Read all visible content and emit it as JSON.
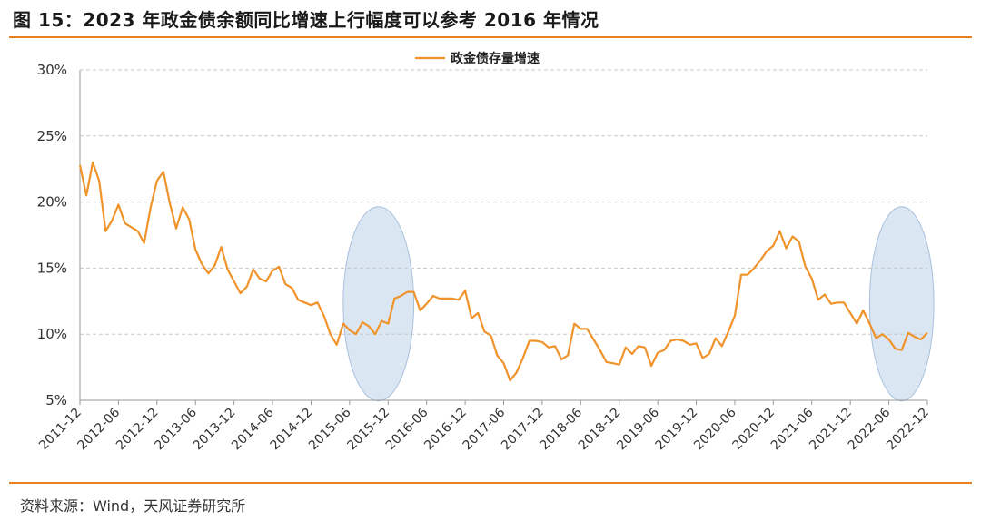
{
  "figure_title": "图 15：2023 年政金债余额同比增速上行幅度可以参考 2016 年情况",
  "source_note": "资料来源：Wind，天风证券研究所",
  "colors": {
    "line": "#f0932b",
    "rule": "#e8821e",
    "ellipse_fill": "#dbe6f3",
    "ellipse_stroke": "#a9c1dd",
    "grid": "#c8c8c8"
  },
  "chart_data": {
    "type": "line",
    "title": "",
    "xlabel": "",
    "ylabel": "",
    "ylim": [
      5,
      30
    ],
    "y_ticks": [
      "5%",
      "10%",
      "15%",
      "20%",
      "25%",
      "30%"
    ],
    "y_tick_values": [
      5,
      10,
      15,
      20,
      25,
      30
    ],
    "x_tick_labels": [
      "2011-12",
      "2012-06",
      "2012-12",
      "2013-06",
      "2013-12",
      "2014-06",
      "2014-12",
      "2015-06",
      "2015-12",
      "2016-06",
      "2016-12",
      "2017-06",
      "2017-12",
      "2018-06",
      "2018-12",
      "2019-06",
      "2019-12",
      "2020-06",
      "2020-12",
      "2021-06",
      "2021-12",
      "2022-06",
      "2022-12"
    ],
    "grid": "horizontal dashed",
    "legend_position": "top-center",
    "highlight_periods": [
      [
        "2015-05",
        "2016-04"
      ],
      "2022-03 to 2023-01"
    ],
    "series": [
      {
        "name": "政金债存量增速",
        "x": [
          "2011-12",
          "2012-01",
          "2012-02",
          "2012-03",
          "2012-04",
          "2012-05",
          "2012-06",
          "2012-07",
          "2012-08",
          "2012-09",
          "2012-10",
          "2012-11",
          "2012-12",
          "2013-01",
          "2013-02",
          "2013-03",
          "2013-04",
          "2013-05",
          "2013-06",
          "2013-07",
          "2013-08",
          "2013-09",
          "2013-10",
          "2013-11",
          "2013-12",
          "2014-01",
          "2014-02",
          "2014-03",
          "2014-04",
          "2014-05",
          "2014-06",
          "2014-07",
          "2014-08",
          "2014-09",
          "2014-10",
          "2014-11",
          "2014-12",
          "2015-01",
          "2015-02",
          "2015-03",
          "2015-04",
          "2015-05",
          "2015-06",
          "2015-07",
          "2015-08",
          "2015-09",
          "2015-10",
          "2015-11",
          "2015-12",
          "2016-01",
          "2016-02",
          "2016-03",
          "2016-04",
          "2016-05",
          "2016-06",
          "2016-07",
          "2016-08",
          "2016-09",
          "2016-10",
          "2016-11",
          "2016-12",
          "2017-01",
          "2017-02",
          "2017-03",
          "2017-04",
          "2017-05",
          "2017-06",
          "2017-07",
          "2017-08",
          "2017-09",
          "2017-10",
          "2017-11",
          "2017-12",
          "2018-01",
          "2018-02",
          "2018-03",
          "2018-04",
          "2018-05",
          "2018-06",
          "2018-07",
          "2018-08",
          "2018-09",
          "2018-10",
          "2018-11",
          "2018-12",
          "2019-01",
          "2019-02",
          "2019-03",
          "2019-04",
          "2019-05",
          "2019-06",
          "2019-07",
          "2019-08",
          "2019-09",
          "2019-10",
          "2019-11",
          "2019-12",
          "2020-01",
          "2020-02",
          "2020-03",
          "2020-04",
          "2020-05",
          "2020-06",
          "2020-07",
          "2020-08",
          "2020-09",
          "2020-10",
          "2020-11",
          "2020-12",
          "2021-01",
          "2021-02",
          "2021-03",
          "2021-04",
          "2021-05",
          "2021-06",
          "2021-07",
          "2021-08",
          "2021-09",
          "2021-10",
          "2021-11",
          "2021-12",
          "2022-01",
          "2022-02",
          "2022-03",
          "2022-04",
          "2022-05",
          "2022-06",
          "2022-07",
          "2022-08",
          "2022-09",
          "2022-10",
          "2022-11",
          "2022-12"
        ],
        "values": [
          22.8,
          20.5,
          23.0,
          21.6,
          17.8,
          18.6,
          19.8,
          18.4,
          18.1,
          17.8,
          16.9,
          19.6,
          21.6,
          22.3,
          19.9,
          18.0,
          19.6,
          18.7,
          16.4,
          15.3,
          14.6,
          15.2,
          16.6,
          14.9,
          14.0,
          13.1,
          13.6,
          14.9,
          14.2,
          14.0,
          14.8,
          15.1,
          13.8,
          13.5,
          12.6,
          12.4,
          12.2,
          12.4,
          11.4,
          10.0,
          9.2,
          10.8,
          10.3,
          10.0,
          10.9,
          10.6,
          10.0,
          11.0,
          10.8,
          12.7,
          12.9,
          13.2,
          13.2,
          11.8,
          12.3,
          12.9,
          12.7,
          12.7,
          12.7,
          12.6,
          13.3,
          11.2,
          11.6,
          10.2,
          9.9,
          8.4,
          7.8,
          6.5,
          7.1,
          8.2,
          9.5,
          9.5,
          9.4,
          9.0,
          9.1,
          8.1,
          8.4,
          10.8,
          10.4,
          10.4,
          9.6,
          8.8,
          7.9,
          7.8,
          7.7,
          9.0,
          8.5,
          9.1,
          9.0,
          7.6,
          8.6,
          8.8,
          9.5,
          9.6,
          9.5,
          9.2,
          9.3,
          8.2,
          8.5,
          9.7,
          9.1,
          10.2,
          11.4,
          14.5,
          14.5,
          15.0,
          15.6,
          16.3,
          16.7,
          17.8,
          16.5,
          17.4,
          17.0,
          15.1,
          14.2,
          12.6,
          13.0,
          12.3,
          12.4,
          12.4,
          11.6,
          10.8,
          11.8,
          10.8,
          9.7,
          10.0,
          9.6,
          8.9,
          8.8,
          10.1,
          9.8,
          9.6,
          10.1
        ]
      }
    ]
  }
}
